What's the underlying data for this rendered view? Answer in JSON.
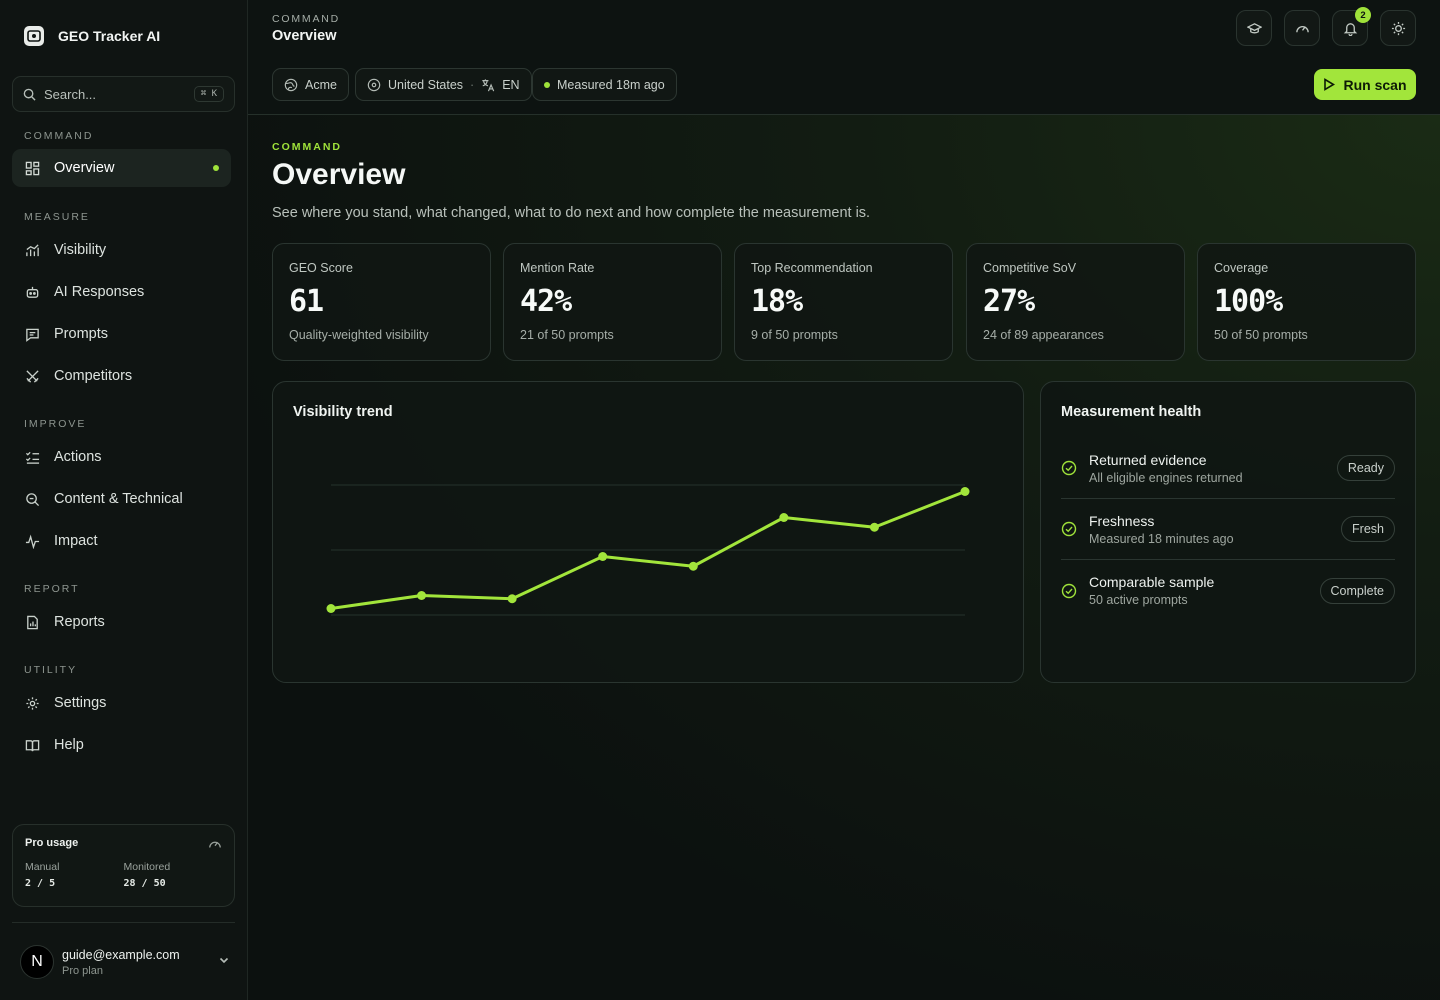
{
  "app": {
    "name": "GEO Tracker AI"
  },
  "search": {
    "placeholder": "Search...",
    "shortcut": "⌘ K"
  },
  "sidebar": {
    "sections": [
      {
        "label": "COMMAND",
        "items": [
          {
            "label": "Overview",
            "icon": "grid-icon",
            "active": true
          }
        ]
      },
      {
        "label": "MEASURE",
        "items": [
          {
            "label": "Visibility",
            "icon": "chart-bars-icon"
          },
          {
            "label": "AI Responses",
            "icon": "bot-icon"
          },
          {
            "label": "Prompts",
            "icon": "message-icon"
          },
          {
            "label": "Competitors",
            "icon": "swords-icon"
          }
        ]
      },
      {
        "label": "IMPROVE",
        "items": [
          {
            "label": "Actions",
            "icon": "checklist-icon"
          },
          {
            "label": "Content & Technical",
            "icon": "search-doc-icon"
          },
          {
            "label": "Impact",
            "icon": "pulse-icon"
          }
        ]
      },
      {
        "label": "REPORT",
        "items": [
          {
            "label": "Reports",
            "icon": "report-icon"
          }
        ]
      },
      {
        "label": "UTILITY",
        "items": [
          {
            "label": "Settings",
            "icon": "gear-icon"
          },
          {
            "label": "Help",
            "icon": "book-icon"
          }
        ]
      }
    ]
  },
  "usage": {
    "title": "Pro usage",
    "manual": {
      "label": "Manual",
      "value": "2 / 5"
    },
    "monitored": {
      "label": "Monitored",
      "value": "28 / 50"
    }
  },
  "account": {
    "initial": "N",
    "email": "guide@example.com",
    "plan": "Pro plan"
  },
  "header": {
    "eyebrow": "COMMAND",
    "title": "Overview",
    "notifications": "2",
    "chips": {
      "brand": "Acme",
      "country": "United States",
      "language": "EN",
      "measured": "Measured 18m ago"
    },
    "run_label": "Run scan"
  },
  "page": {
    "eyebrow": "COMMAND",
    "title": "Overview",
    "subtitle": "See where you stand, what changed, what to do next and how complete the measurement is."
  },
  "kpis": [
    {
      "label": "GEO Score",
      "value": "61",
      "sub": "Quality-weighted visibility"
    },
    {
      "label": "Mention Rate",
      "value": "42%",
      "sub": "21 of 50 prompts"
    },
    {
      "label": "Top Recommendation",
      "value": "18%",
      "sub": "9 of 50 prompts"
    },
    {
      "label": "Competitive SoV",
      "value": "27%",
      "sub": "24 of 89 appearances"
    },
    {
      "label": "Coverage",
      "value": "100%",
      "sub": "50 of 50 prompts"
    }
  ],
  "trend": {
    "title": "Visibility trend",
    "chart_data": {
      "type": "line",
      "title": "Visibility trend",
      "y": [
        22,
        26,
        25,
        38,
        35,
        50,
        47,
        58
      ],
      "ylim": [
        20,
        60
      ],
      "grid": true,
      "line_color": "#a2e53b"
    }
  },
  "health": {
    "title": "Measurement health",
    "rows": [
      {
        "title": "Returned evidence",
        "sub": "All eligible engines returned",
        "status": "Ready"
      },
      {
        "title": "Freshness",
        "sub": "Measured 18 minutes ago",
        "status": "Fresh"
      },
      {
        "title": "Comparable sample",
        "sub": "50 active prompts",
        "status": "Complete"
      }
    ]
  },
  "colors": {
    "accent": "#a2e53b",
    "background": "#0c110f"
  }
}
